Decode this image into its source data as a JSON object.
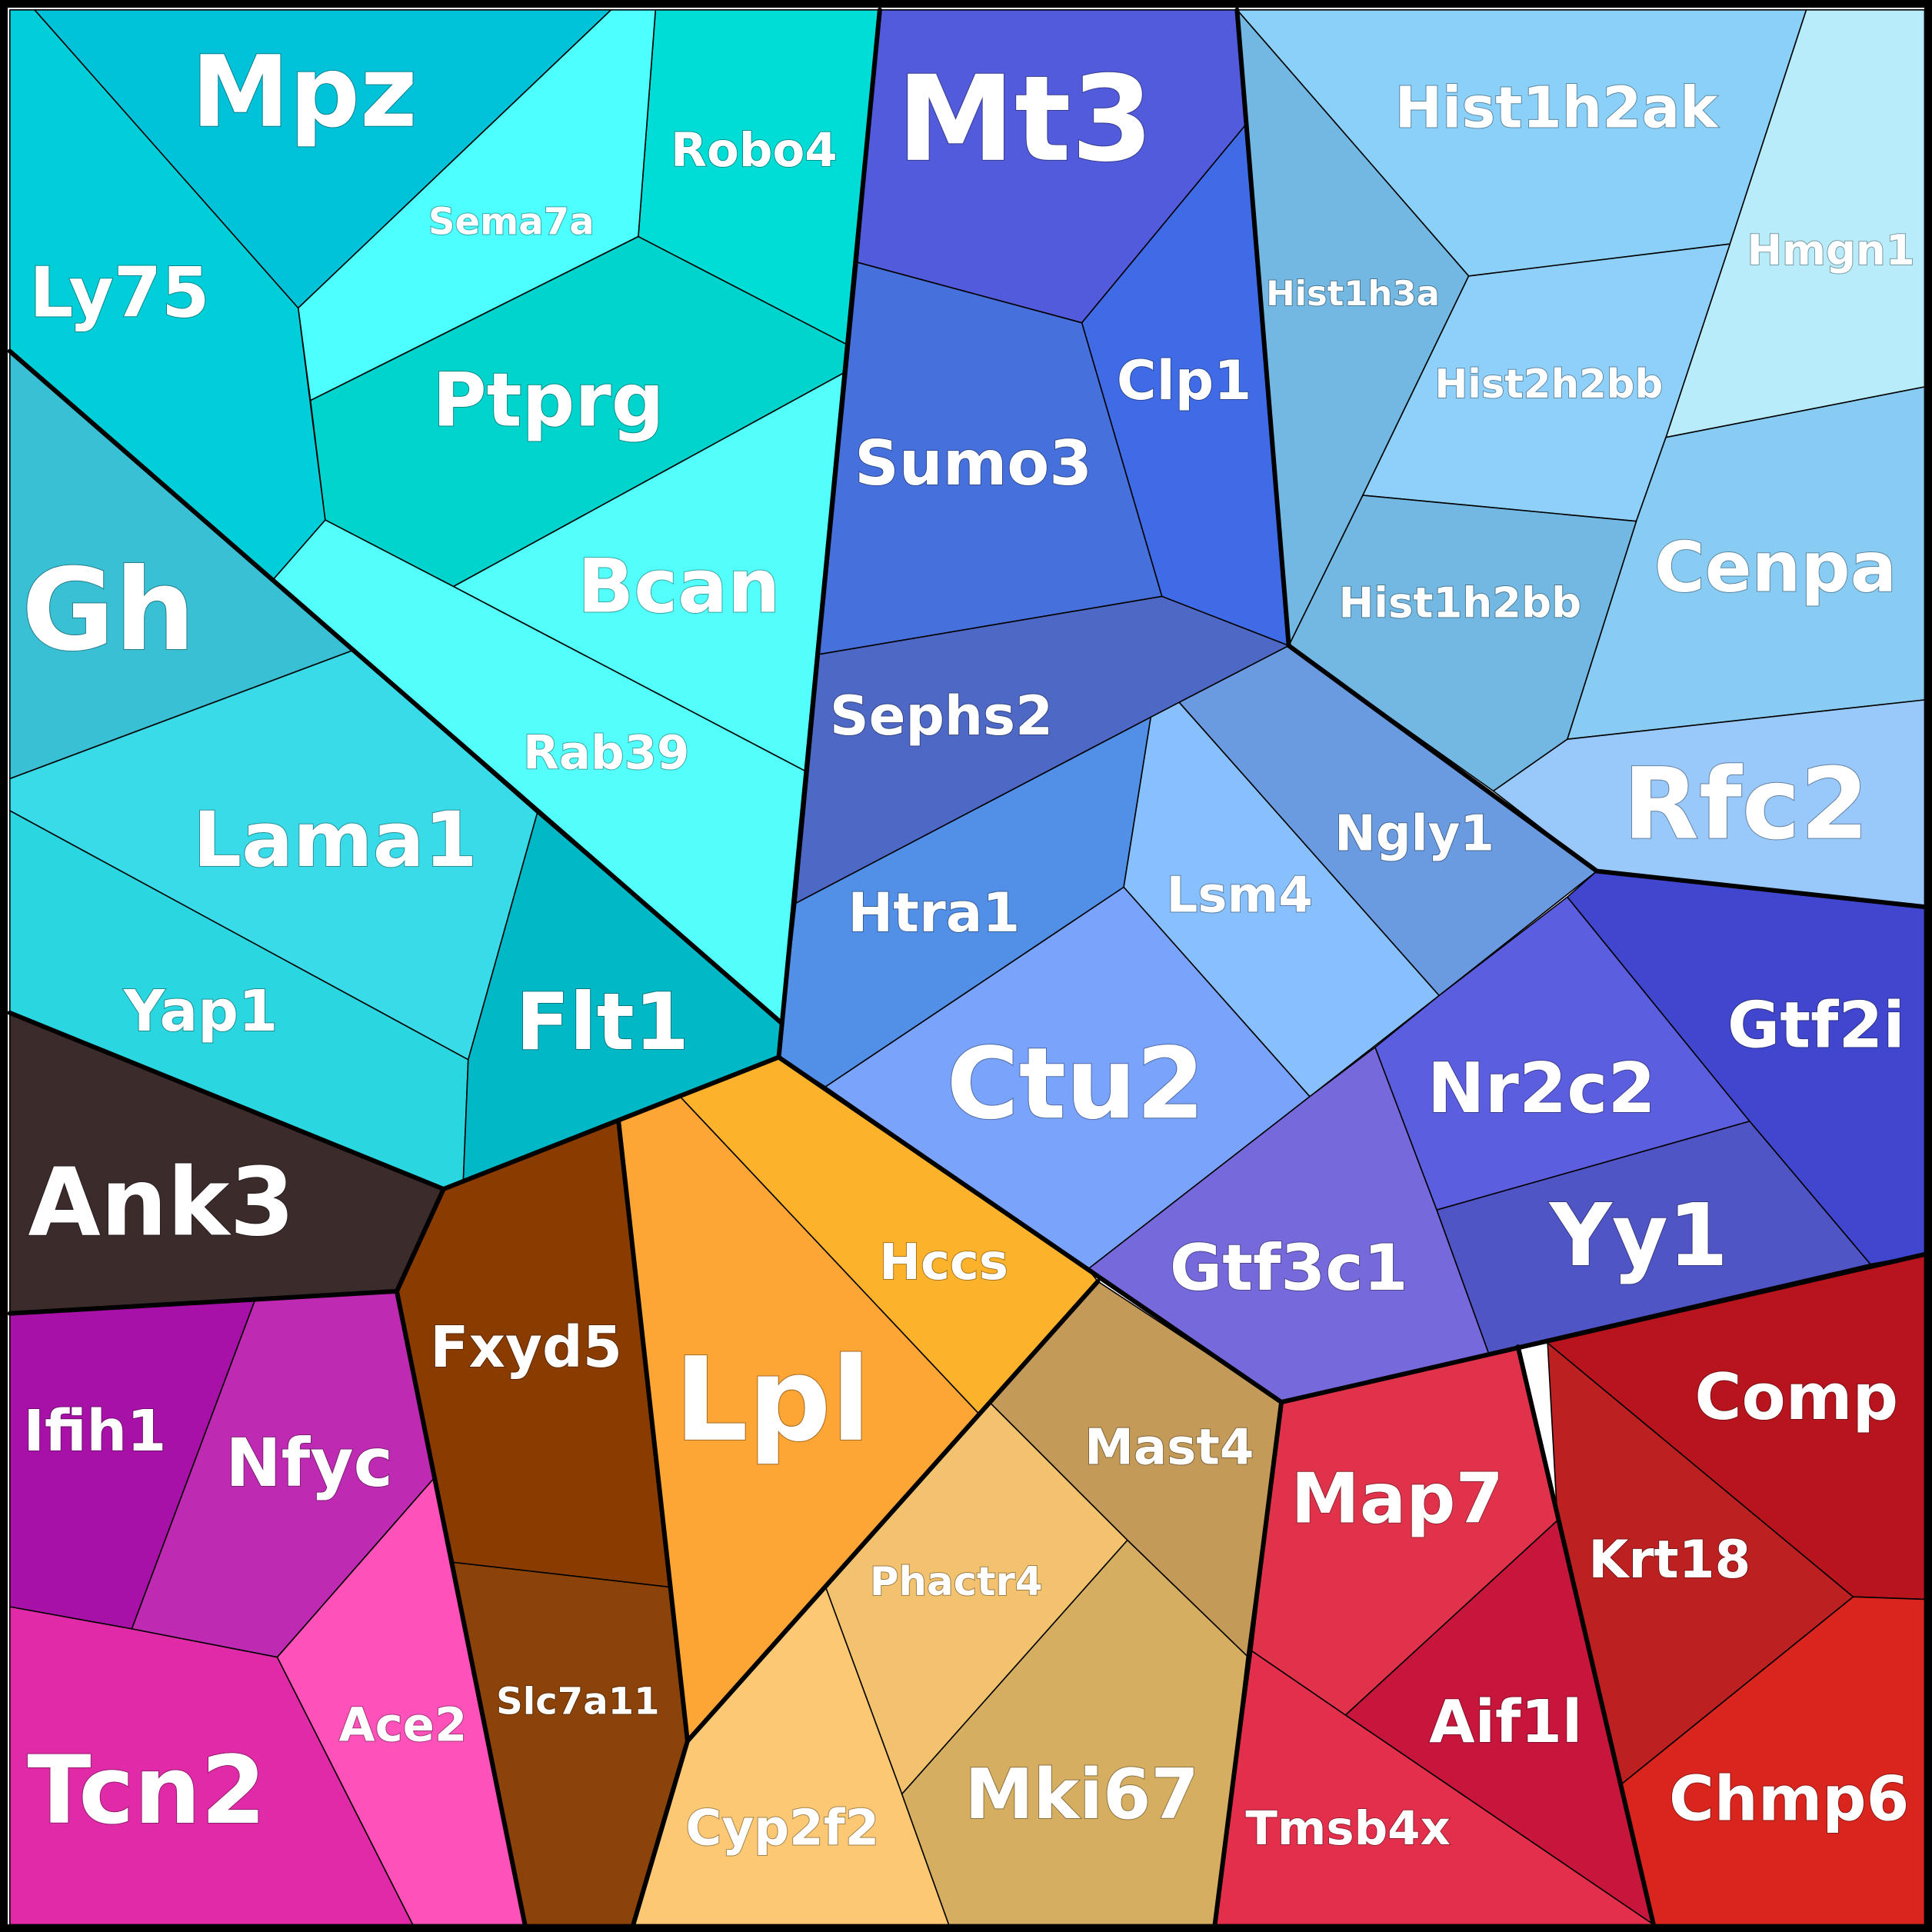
{
  "chart_data": {
    "type": "voronoi-treemap",
    "cells": [
      {
        "label": "Mpz",
        "color": "#00c3d9",
        "group": "cyan"
      },
      {
        "label": "Robo4",
        "color": "#00ddd6",
        "group": "cyan"
      },
      {
        "label": "Sema7a",
        "color": "#4dffff",
        "group": "cyan"
      },
      {
        "label": "Ly75",
        "color": "#00ced8",
        "group": "cyan"
      },
      {
        "label": "Ptprg",
        "color": "#00d4cc",
        "group": "cyan"
      },
      {
        "label": "Gh",
        "color": "#39c0d4",
        "group": "cyan"
      },
      {
        "label": "Bcan",
        "color": "#53fffb",
        "group": "cyan"
      },
      {
        "label": "Rab39",
        "color": "#53fffb",
        "group": "cyan"
      },
      {
        "label": "Lama1",
        "color": "#3adbe8",
        "group": "cyan"
      },
      {
        "label": "Yap1",
        "color": "#2ad6df",
        "group": "cyan"
      },
      {
        "label": "Flt1",
        "color": "#00b8c6",
        "group": "cyan"
      },
      {
        "label": "Mt3",
        "color": "#525bdc",
        "group": "blue"
      },
      {
        "label": "Clp1",
        "color": "#3f6be6",
        "group": "blue"
      },
      {
        "label": "Sumo3",
        "color": "#4670dc",
        "group": "blue"
      },
      {
        "label": "Sephs2",
        "color": "#4e68c6",
        "group": "blue"
      },
      {
        "label": "Htra1",
        "color": "#528fe6",
        "group": "blue"
      },
      {
        "label": "Lsm4",
        "color": "#87c0fc",
        "group": "blue"
      },
      {
        "label": "Ngly1",
        "color": "#6a9be0",
        "group": "blue"
      },
      {
        "label": "Ctu2",
        "color": "#7aa4fc",
        "group": "blue"
      },
      {
        "label": "Nr2c2",
        "color": "#5c5ee0",
        "group": "blue"
      },
      {
        "label": "Gtf2i",
        "color": "#4146ce",
        "group": "blue"
      },
      {
        "label": "Yy1",
        "color": "#5055c6",
        "group": "blue"
      },
      {
        "label": "Gtf3c1",
        "color": "#7669dc",
        "group": "blue"
      },
      {
        "label": "Hist1h2ak",
        "color": "#8ad0f8",
        "group": "lightblue"
      },
      {
        "label": "Hmgn1",
        "color": "#b8ecfa",
        "group": "lightblue"
      },
      {
        "label": "Hist1h3a",
        "color": "#72b8e2",
        "group": "lightblue"
      },
      {
        "label": "Hist2h2bb",
        "color": "#8ed0fa",
        "group": "lightblue"
      },
      {
        "label": "Cenpa",
        "color": "#88ccf4",
        "group": "lightblue"
      },
      {
        "label": "Hist1h2bb",
        "color": "#72b8e2",
        "group": "lightblue"
      },
      {
        "label": "Rfc2",
        "color": "#99c8fa",
        "group": "lightblue"
      },
      {
        "label": "Ank3",
        "color": "#3c2b2b",
        "group": "dark"
      },
      {
        "label": "Ifih1",
        "color": "#a811a8",
        "group": "magenta"
      },
      {
        "label": "Nfyc",
        "color": "#be2bb2",
        "group": "magenta"
      },
      {
        "label": "Tcn2",
        "color": "#e02aa8",
        "group": "magenta"
      },
      {
        "label": "Ace2",
        "color": "#fe52ba",
        "group": "magenta"
      },
      {
        "label": "Fxyd5",
        "color": "#893b00",
        "group": "brown"
      },
      {
        "label": "Slc7a11",
        "color": "#8c430a",
        "group": "brown"
      },
      {
        "label": "Lpl",
        "color": "#fda535",
        "group": "orange"
      },
      {
        "label": "Hccs",
        "color": "#fdb22b",
        "group": "orange"
      },
      {
        "label": "Mast4",
        "color": "#c49a58",
        "group": "tan"
      },
      {
        "label": "Phactr4",
        "color": "#f2c26e",
        "group": "tan"
      },
      {
        "label": "Cyp2f2",
        "color": "#fcc874",
        "group": "tan"
      },
      {
        "label": "Mki67",
        "color": "#d5ae62",
        "group": "tan"
      },
      {
        "label": "Map7",
        "color": "#e0334b",
        "group": "red"
      },
      {
        "label": "Comp",
        "color": "#b8141e",
        "group": "red"
      },
      {
        "label": "Krt18",
        "color": "#bd2020",
        "group": "red"
      },
      {
        "label": "Aif1l",
        "color": "#c8153c",
        "group": "red"
      },
      {
        "label": "Tmsb4x",
        "color": "#e42f4c",
        "group": "red"
      },
      {
        "label": "Chmp6",
        "color": "#da241e",
        "group": "red"
      }
    ]
  }
}
